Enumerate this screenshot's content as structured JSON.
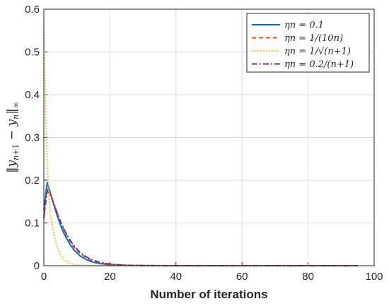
{
  "chart_data": {
    "type": "line",
    "xlabel": "Number of iterations",
    "ylabel": "‖y_{n+1} − y_n‖∞",
    "xlim": [
      0,
      100
    ],
    "ylim": [
      0,
      0.6
    ],
    "xticks": [
      "0",
      "20",
      "40",
      "60",
      "80",
      "100"
    ],
    "yticks": [
      "0",
      "0.1",
      "0.2",
      "0.3",
      "0.4",
      "0.5",
      "0.6"
    ],
    "grid": true,
    "legend_position": "top-right",
    "series": [
      {
        "name": "ηn = 0.1",
        "color": "#0072BD",
        "style": "solid",
        "points": [
          [
            0,
            0.13
          ],
          [
            1,
            0.195
          ],
          [
            2,
            0.17
          ],
          [
            3,
            0.143
          ],
          [
            4,
            0.118
          ],
          [
            5,
            0.096
          ],
          [
            6,
            0.077
          ],
          [
            7,
            0.062
          ],
          [
            8,
            0.049
          ],
          [
            9,
            0.038
          ],
          [
            10,
            0.03
          ],
          [
            11,
            0.023
          ],
          [
            12,
            0.018
          ],
          [
            13,
            0.014
          ],
          [
            14,
            0.011
          ],
          [
            15,
            0.008
          ],
          [
            17,
            0.005
          ],
          [
            19,
            0.003
          ],
          [
            22,
            0.0015
          ],
          [
            26,
            0.0006
          ],
          [
            30,
            0.0002
          ],
          [
            40,
            0
          ],
          [
            60,
            0
          ],
          [
            80,
            0
          ],
          [
            95,
            0
          ]
        ]
      },
      {
        "name": "ηn = 1/(10n)",
        "color": "#D95319",
        "style": "dashed",
        "points": [
          [
            0,
            0.11
          ],
          [
            1,
            0.18
          ],
          [
            2,
            0.168
          ],
          [
            3,
            0.146
          ],
          [
            4,
            0.124
          ],
          [
            5,
            0.103
          ],
          [
            6,
            0.085
          ],
          [
            7,
            0.069
          ],
          [
            8,
            0.056
          ],
          [
            9,
            0.045
          ],
          [
            10,
            0.036
          ],
          [
            11,
            0.029
          ],
          [
            12,
            0.023
          ],
          [
            13,
            0.018
          ],
          [
            14,
            0.014
          ],
          [
            15,
            0.011
          ],
          [
            17,
            0.007
          ],
          [
            19,
            0.004
          ],
          [
            22,
            0.002
          ],
          [
            26,
            0.0008
          ],
          [
            30,
            0.0003
          ],
          [
            40,
            0
          ],
          [
            60,
            0
          ],
          [
            80,
            0
          ],
          [
            95,
            0
          ]
        ]
      },
      {
        "name": "ηn = 1/√(n+1)",
        "color": "#EDB120",
        "style": "dotted",
        "points": [
          [
            0,
            0.56
          ],
          [
            0.5,
            0.38
          ],
          [
            1,
            0.24
          ],
          [
            1.5,
            0.17
          ],
          [
            2,
            0.12
          ],
          [
            3,
            0.075
          ],
          [
            4,
            0.045
          ],
          [
            5,
            0.027
          ],
          [
            6,
            0.016
          ],
          [
            7,
            0.009
          ],
          [
            8,
            0.005
          ],
          [
            10,
            0.002
          ],
          [
            13,
            0.0005
          ],
          [
            20,
            0
          ],
          [
            40,
            0
          ],
          [
            60,
            0
          ],
          [
            80,
            0
          ],
          [
            95,
            0
          ]
        ]
      },
      {
        "name": "ηn = 0.2/(n+1)",
        "color": "#7E2F8E",
        "style": "dashdot",
        "points": [
          [
            0,
            0.115
          ],
          [
            1,
            0.175
          ],
          [
            2,
            0.165
          ],
          [
            3,
            0.145
          ],
          [
            4,
            0.124
          ],
          [
            5,
            0.104
          ],
          [
            6,
            0.087
          ],
          [
            7,
            0.072
          ],
          [
            8,
            0.059
          ],
          [
            9,
            0.048
          ],
          [
            10,
            0.039
          ],
          [
            11,
            0.031
          ],
          [
            12,
            0.025
          ],
          [
            13,
            0.02
          ],
          [
            14,
            0.016
          ],
          [
            15,
            0.013
          ],
          [
            17,
            0.008
          ],
          [
            19,
            0.005
          ],
          [
            22,
            0.0025
          ],
          [
            26,
            0.001
          ],
          [
            30,
            0.0004
          ],
          [
            40,
            0
          ],
          [
            60,
            0
          ],
          [
            80,
            0
          ],
          [
            95,
            0
          ]
        ]
      }
    ]
  }
}
